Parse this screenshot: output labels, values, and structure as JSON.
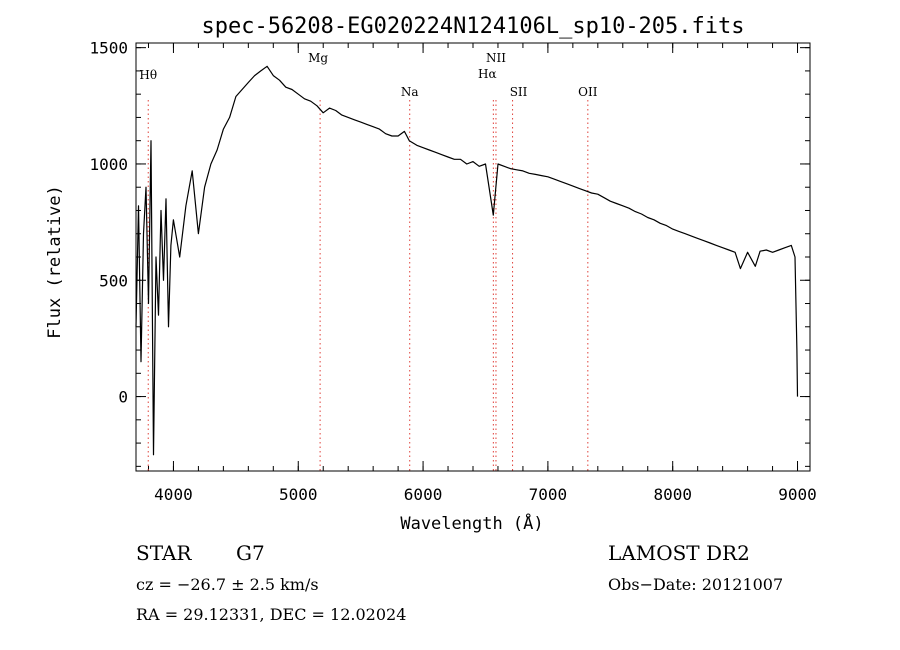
{
  "chart_data": {
    "type": "line",
    "title": "spec-56208-EG020224N124106L_sp10-205.fits",
    "xlabel": "Wavelength (Å)",
    "ylabel": "Flux (relative)",
    "xlim": [
      3700,
      9100
    ],
    "ylim": [
      -320,
      1520
    ],
    "x_ticks": [
      4000,
      5000,
      6000,
      7000,
      8000,
      9000
    ],
    "y_ticks": [
      0,
      500,
      1000,
      1500
    ],
    "x_minor_step": 200,
    "y_minor_step": 100,
    "grid": false,
    "legend": "none",
    "line_color": "#000000",
    "marker_color": "#e0413a",
    "series": [
      {
        "x": [
          3700,
          3720,
          3740,
          3760,
          3780,
          3800,
          3820,
          3840,
          3860,
          3880,
          3900,
          3920,
          3940,
          3960,
          3980,
          4000,
          4050,
          4100,
          4150,
          4200,
          4250,
          4300,
          4350,
          4400,
          4450,
          4500,
          4550,
          4600,
          4650,
          4700,
          4750,
          4800,
          4850,
          4900,
          4950,
          5000,
          5050,
          5100,
          5150,
          5200,
          5250,
          5300,
          5350,
          5400,
          5450,
          5500,
          5550,
          5600,
          5650,
          5700,
          5750,
          5800,
          5850,
          5890,
          5950,
          6000,
          6050,
          6100,
          6150,
          6200,
          6250,
          6300,
          6350,
          6400,
          6450,
          6500,
          6563,
          6600,
          6650,
          6700,
          6750,
          6800,
          6850,
          6900,
          6950,
          7000,
          7050,
          7100,
          7150,
          7200,
          7250,
          7300,
          7350,
          7400,
          7450,
          7500,
          7550,
          7600,
          7650,
          7700,
          7750,
          7800,
          7850,
          7900,
          7950,
          8000,
          8050,
          8100,
          8150,
          8200,
          8250,
          8300,
          8350,
          8400,
          8450,
          8500,
          8542,
          8600,
          8662,
          8700,
          8750,
          8800,
          8850,
          8900,
          8950,
          8980,
          8995,
          9000
        ],
        "y": [
          300,
          820,
          150,
          700,
          900,
          400,
          1100,
          -250,
          600,
          350,
          800,
          500,
          850,
          300,
          650,
          760,
          600,
          820,
          970,
          700,
          900,
          1000,
          1060,
          1150,
          1200,
          1290,
          1320,
          1350,
          1380,
          1400,
          1420,
          1380,
          1360,
          1330,
          1320,
          1300,
          1280,
          1270,
          1250,
          1220,
          1240,
          1230,
          1210,
          1200,
          1190,
          1180,
          1170,
          1160,
          1150,
          1130,
          1120,
          1120,
          1140,
          1100,
          1080,
          1070,
          1060,
          1050,
          1040,
          1030,
          1020,
          1020,
          1000,
          1010,
          990,
          1000,
          780,
          1000,
          990,
          980,
          975,
          970,
          960,
          955,
          950,
          945,
          935,
          925,
          915,
          905,
          895,
          885,
          875,
          870,
          855,
          840,
          830,
          820,
          810,
          795,
          785,
          770,
          760,
          745,
          735,
          720,
          710,
          700,
          690,
          680,
          670,
          660,
          650,
          640,
          630,
          620,
          550,
          620,
          560,
          625,
          630,
          620,
          630,
          640,
          650,
          600,
          200,
          0
        ]
      }
    ],
    "lines": [
      {
        "label": "Hθ",
        "x": 3798
      },
      {
        "label": "Mg",
        "x": 5175
      },
      {
        "label": "Na",
        "x": 5893
      },
      {
        "label": "NII",
        "x": 6584
      },
      {
        "label": "Hα",
        "x": 6563
      },
      {
        "label": "SII",
        "x": 6717
      },
      {
        "label": "OII",
        "x": 7320
      }
    ]
  },
  "footer": {
    "object_type": "STAR",
    "subclass": "G7",
    "cz": "cz = −26.7 ± 2.5 km/s",
    "coords": "RA =  29.12331, DEC =  12.02024",
    "survey": "LAMOST DR2",
    "obs_date": "Obs−Date: 20121007"
  }
}
